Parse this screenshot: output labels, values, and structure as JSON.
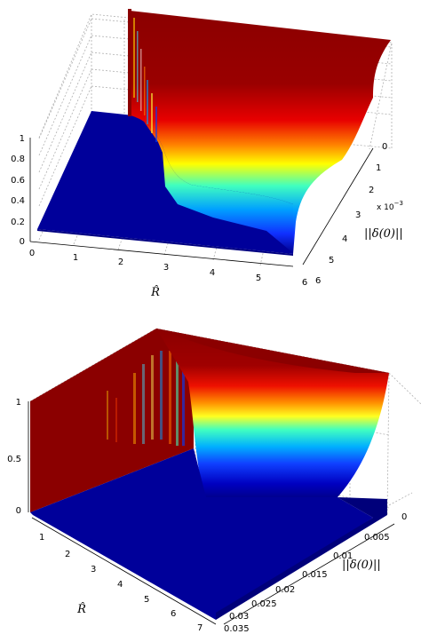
{
  "chart_data": [
    {
      "type": "surface",
      "title": "",
      "xlabel": "R̂",
      "ylabel": "||δ(0)||",
      "zlabel": "",
      "x_ticks": [
        "0",
        "1",
        "2",
        "3",
        "4",
        "5",
        "6"
      ],
      "y_ticks": [
        "0",
        "1",
        "2",
        "3",
        "4",
        "5",
        "6"
      ],
      "z_ticks": [
        "0",
        "0.2",
        "0.4",
        "0.6",
        "0.8",
        "1"
      ],
      "y_multiplier": "x 10",
      "y_multiplier_exp": "−3",
      "xlim": [
        0,
        6
      ],
      "ylim": [
        0,
        0.006
      ],
      "zlim": [
        0,
        1
      ],
      "grid": true,
      "colormap": "jet",
      "surface_description": "Surface is 1 for small R̂ and increases to 1 near R̂≈0.6; drops to 0 (flat plane) for R̂ > ~2 with a smooth transition; value near 1 when ||δ(0)|| is small.",
      "flat_value_region": {
        "x_from": 0,
        "x_to": 6,
        "z": 0
      }
    },
    {
      "type": "surface",
      "title": "",
      "xlabel": "R̂",
      "ylabel": "||δ(0)||",
      "zlabel": "",
      "x_ticks": [
        "1",
        "2",
        "3",
        "4",
        "5",
        "6",
        "7"
      ],
      "y_ticks": [
        "0",
        "0.005",
        "0.01",
        "0.015",
        "0.02",
        "0.025",
        "0.03",
        "0.035"
      ],
      "z_ticks": [
        "0",
        "0.5",
        "1"
      ],
      "xlim": [
        0,
        7
      ],
      "ylim": [
        0,
        0.035
      ],
      "zlim": [
        0,
        1
      ],
      "grid": true,
      "colormap": "jet"
    }
  ]
}
